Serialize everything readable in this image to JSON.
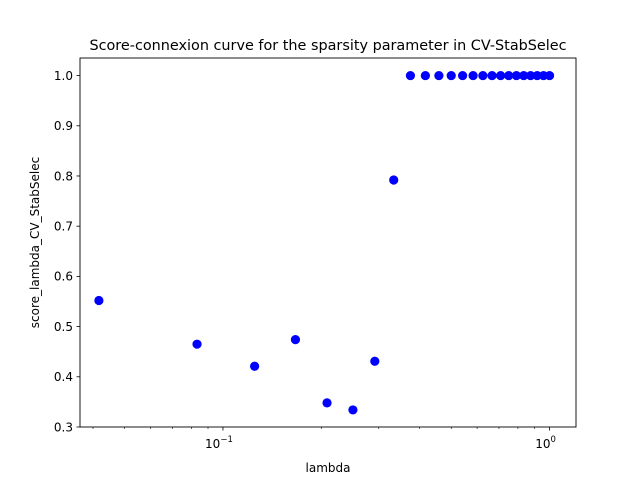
{
  "chart_data": {
    "type": "scatter",
    "title": "Score-connexion curve for the sparsity parameter in CV-StabSelec",
    "xlabel": "lambda",
    "ylabel": "score_lambda_CV_StabSelec",
    "xscale": "log",
    "xlim": [
      0.0365,
      1.205
    ],
    "ylim": [
      0.3,
      1.035
    ],
    "x_ticks": [
      {
        "value": 0.1,
        "base": "10",
        "exp": "−1"
      },
      {
        "value": 1,
        "base": "10",
        "exp": "0"
      }
    ],
    "y_ticks": [
      {
        "value": 0.3,
        "label": "0.3"
      },
      {
        "value": 0.4,
        "label": "0.4"
      },
      {
        "value": 0.5,
        "label": "0.5"
      },
      {
        "value": 0.6,
        "label": "0.6"
      },
      {
        "value": 0.7,
        "label": "0.7"
      },
      {
        "value": 0.8,
        "label": "0.8"
      },
      {
        "value": 0.9,
        "label": "0.9"
      },
      {
        "value": 1.0,
        "label": "1.0"
      }
    ],
    "marker_color": "#0000ff",
    "series": [
      {
        "name": "score",
        "x": [
          0.0417,
          0.0833,
          0.125,
          0.1667,
          0.2083,
          0.25,
          0.2917,
          0.3333,
          0.375,
          0.4167,
          0.4583,
          0.5,
          0.5417,
          0.5833,
          0.625,
          0.6667,
          0.7083,
          0.75,
          0.7917,
          0.8333,
          0.875,
          0.9167,
          0.9583,
          1.0
        ],
        "y": [
          0.552,
          0.465,
          0.421,
          0.474,
          0.348,
          0.334,
          0.431,
          0.792,
          1.0,
          1.0,
          1.0,
          1.0,
          1.0,
          1.0,
          1.0,
          1.0,
          1.0,
          1.0,
          1.0,
          1.0,
          1.0,
          1.0,
          1.0,
          1.0
        ]
      }
    ]
  }
}
